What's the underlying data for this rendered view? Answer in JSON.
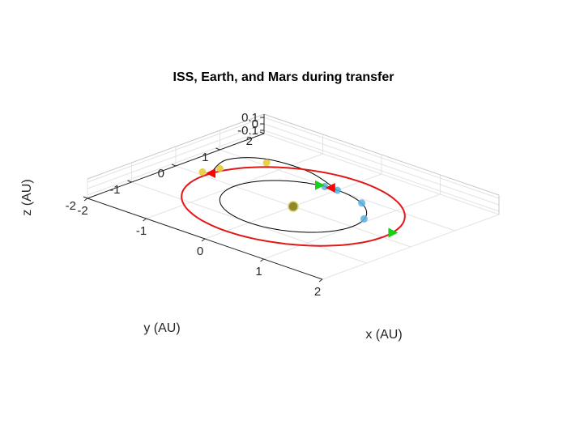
{
  "chart_data": {
    "type": "scatter",
    "title": "ISS, Earth, and Mars during transfer",
    "xlabel": "x (AU)",
    "ylabel": "y (AU)",
    "zlabel": "z (AU)",
    "xlim": [
      -2,
      2
    ],
    "ylim": [
      -2,
      2
    ],
    "zlim": [
      -0.15,
      0.15
    ],
    "x_ticks": [
      "-2",
      "-1",
      "0",
      "1",
      "2"
    ],
    "y_ticks": [
      "-2",
      "-1",
      "0",
      "1",
      "2"
    ],
    "z_ticks": [
      "-0.1",
      "0",
      "0.1"
    ],
    "grid": true,
    "legend": "none",
    "series": [
      {
        "kind": "orbit",
        "color": "#000000",
        "center": [
          0,
          0
        ],
        "radius": 1.0
      },
      {
        "kind": "transfer",
        "color": "#000000",
        "points": [
          [
            0.0,
            1.0
          ],
          [
            -0.7,
            1.28
          ],
          [
            -1.4,
            1.2
          ],
          [
            -1.7,
            0.75
          ],
          [
            -1.52,
            0.15
          ]
        ]
      },
      {
        "kind": "orbit",
        "color": "#e01818",
        "center": [
          0,
          0
        ],
        "radius": 1.52
      },
      {
        "kind": "marker",
        "name": "Sun",
        "color": "#8e8a2c",
        "points": [
          [
            0,
            0
          ]
        ]
      },
      {
        "kind": "marker",
        "name": "Earth samples",
        "color": "#5ab0e0",
        "points": [
          [
            0.0,
            1.0
          ],
          [
            -0.2,
            0.98
          ],
          [
            0.52,
            0.86
          ],
          [
            0.92,
            0.38
          ]
        ]
      },
      {
        "kind": "marker",
        "name": "Mars samples",
        "color": "#e8c830",
        "points": [
          [
            -1.55,
            0.4
          ],
          [
            -1.62,
            0.1
          ],
          [
            -1.28,
            1.1
          ]
        ]
      },
      {
        "kind": "marker",
        "name": "Departure / arrival",
        "color": "#18d018",
        "points": [
          [
            -0.28,
            0.96
          ],
          [
            1.5,
            0.25
          ]
        ]
      },
      {
        "kind": "marker",
        "name": "Red triangles",
        "color": "#ff0000",
        "points": [
          [
            -0.12,
            1.0
          ],
          [
            -1.52,
            0.15
          ]
        ]
      }
    ]
  }
}
